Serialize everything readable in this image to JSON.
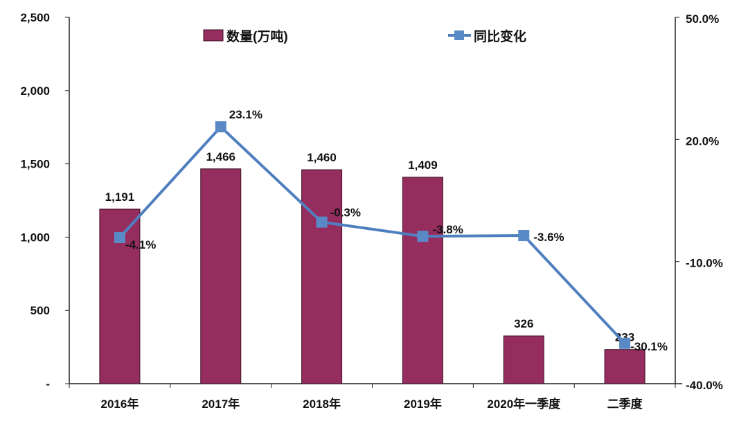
{
  "chart_data": {
    "type": "bar+line",
    "categories": [
      "2016年",
      "2017年",
      "2018年",
      "2019年",
      "2020年一季度",
      "二季度"
    ],
    "series": [
      {
        "name": "数量(万吨)",
        "type": "bar",
        "axis": "left",
        "values": [
          1191,
          1466,
          1460,
          1409,
          326,
          233
        ],
        "labels": [
          "1,191",
          "1,466",
          "1,460",
          "1,409",
          "326",
          "233"
        ]
      },
      {
        "name": "同比变化",
        "type": "line",
        "axis": "right",
        "values": [
          -4.1,
          23.1,
          -0.3,
          -3.8,
          -3.6,
          -30.1
        ],
        "labels": [
          "-4.1%",
          "23.1%",
          "-0.3%",
          "-3.8%",
          "-3.6%",
          "-30.1%"
        ]
      }
    ],
    "left_axis": {
      "range": [
        0,
        2500
      ],
      "ticks": [
        "-",
        "500",
        "1,000",
        "1,500",
        "2,000",
        "2,500"
      ]
    },
    "right_axis": {
      "range": [
        -40,
        50
      ],
      "ticks": [
        "-40.0%",
        "-10.0%",
        "20.0%",
        "50.0%"
      ]
    },
    "grid": false,
    "legend_position": "top",
    "colors": {
      "bar": "#962d5f",
      "bar_edge": "#3a1024",
      "line": "#4f7fbf",
      "marker": "#5a8ac6"
    }
  }
}
